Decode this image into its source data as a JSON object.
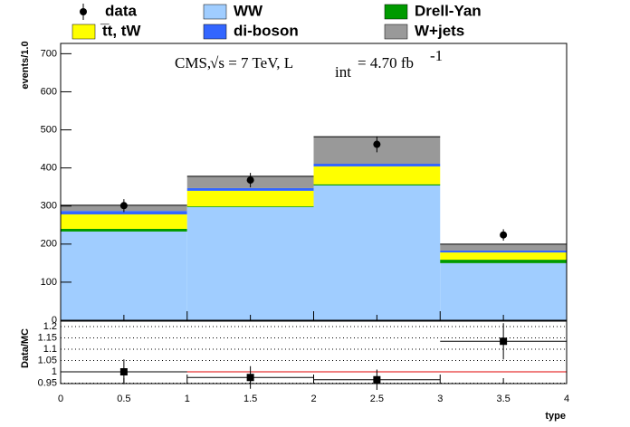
{
  "chart_data": [
    {
      "type": "histogram",
      "ylabel": "events/1.0",
      "annotation": [
        "CMS,",
        "√s = 7 TeV, L",
        "int",
        "= 4.70 fb",
        "-1"
      ],
      "bins": [
        0,
        1,
        2,
        3,
        4
      ],
      "ylim": [
        0,
        727
      ],
      "yticks": [
        0,
        100,
        200,
        300,
        400,
        500,
        600,
        700
      ],
      "series": [
        {
          "name": "WW",
          "color": "#a0cdff",
          "values": [
            233,
            297,
            354,
            150
          ]
        },
        {
          "name": "Drell-Yan",
          "color": "#009a00",
          "values": [
            7,
            2,
            3,
            9
          ]
        },
        {
          "name": "t̅t, tW",
          "color": "#ffff00",
          "values": [
            38,
            41,
            47,
            19
          ]
        },
        {
          "name": "di-boson",
          "color": "#3366ff",
          "values": [
            9,
            7,
            7,
            5
          ]
        },
        {
          "name": "W+jets",
          "color": "#999999",
          "values": [
            15,
            31,
            71,
            17
          ]
        }
      ],
      "data": {
        "name": "data",
        "values": [
          301,
          368,
          462,
          224
        ],
        "errors": [
          17,
          19,
          21,
          15
        ]
      }
    },
    {
      "type": "scatter",
      "xlabel": "type",
      "ylabel": "Data/MC",
      "xlim": [
        0,
        4
      ],
      "xticks": [
        0,
        0.5,
        1,
        1.5,
        2,
        2.5,
        3,
        3.5,
        4
      ],
      "ylim": [
        0.948,
        1.224
      ],
      "yticks": [
        0.95,
        1,
        1.05,
        1.1,
        1.15,
        1.2
      ],
      "reference": 1,
      "x": [
        0.5,
        1.5,
        2.5,
        3.5
      ],
      "values": [
        1.0,
        0.975,
        0.965,
        1.135
      ],
      "errors": [
        0.055,
        0.05,
        0.045,
        0.08
      ],
      "grid": true
    }
  ]
}
